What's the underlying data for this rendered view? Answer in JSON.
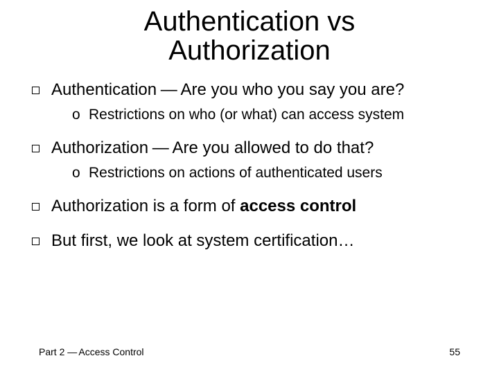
{
  "title": {
    "line1": "Authentication vs",
    "line2": "Authorization",
    "fontsize": 40,
    "color": "#000000"
  },
  "bullets": {
    "lvl1_fontsize": 24,
    "lvl2_fontsize": 21,
    "text_color": "#000000",
    "items": [
      {
        "term": "Authentication",
        "dash": " — ",
        "rest": "Are you who you say you are?",
        "sub": [
          {
            "text": "Restrictions on who (or what) can access system"
          }
        ]
      },
      {
        "term": "Authorization",
        "dash": " — ",
        "rest": "Are you allowed to do that?",
        "sub": [
          {
            "text": "Restrictions on actions of authenticated users"
          }
        ]
      },
      {
        "pre": "Authorization is a form of ",
        "strong": "access control",
        "post": ""
      },
      {
        "plain": "But first, we look at system certification…"
      }
    ]
  },
  "footer": {
    "left_pre": "Part 2 ",
    "left_dash": "—",
    "left_post": " Access Control",
    "page": "55",
    "fontsize": 14,
    "page_color": "#000000",
    "text_color": "#000000"
  },
  "background_color": "#ffffff"
}
